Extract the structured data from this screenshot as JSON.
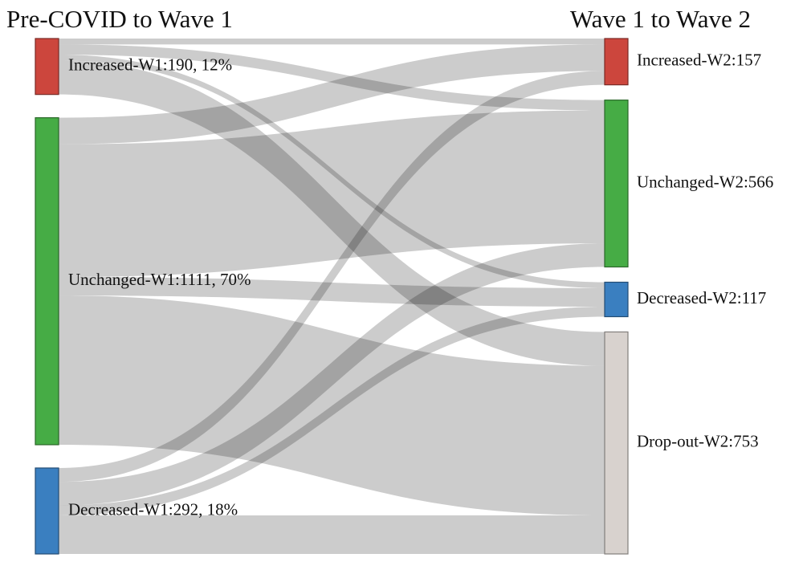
{
  "titles": {
    "left": "Pre-COVID to Wave 1",
    "right": "Wave 1 to Wave 2"
  },
  "chart_data": {
    "type": "sankey",
    "left_nodes": [
      {
        "id": "inc1",
        "label": "Increased-W1:190, 12%",
        "value": 190,
        "color": "#cc463d"
      },
      {
        "id": "unc1",
        "label": "Unchanged-W1:1111, 70%",
        "value": 1111,
        "color": "#46ac45"
      },
      {
        "id": "dec1",
        "label": "Decreased-W1:292, 18%",
        "value": 292,
        "color": "#3a7fc0"
      }
    ],
    "right_nodes": [
      {
        "id": "inc2",
        "label": "Increased-W2:157",
        "value": 157,
        "color": "#cc463d"
      },
      {
        "id": "unc2",
        "label": "Unchanged-W2:566",
        "value": 566,
        "color": "#46ac45"
      },
      {
        "id": "dec2",
        "label": "Decreased-W2:117",
        "value": 117,
        "color": "#3a7fc0"
      },
      {
        "id": "drop2",
        "label": "Drop-out-W2:753",
        "value": 753,
        "color": "#d8d2ce"
      }
    ],
    "links": [
      {
        "source": "inc1",
        "target": "inc2",
        "value": 20
      },
      {
        "source": "inc1",
        "target": "unc2",
        "value": 35
      },
      {
        "source": "inc1",
        "target": "dec2",
        "value": 20
      },
      {
        "source": "inc1",
        "target": "drop2",
        "value": 115
      },
      {
        "source": "unc1",
        "target": "inc2",
        "value": 90
      },
      {
        "source": "unc1",
        "target": "unc2",
        "value": 451
      },
      {
        "source": "unc1",
        "target": "dec2",
        "value": 63
      },
      {
        "source": "unc1",
        "target": "drop2",
        "value": 507
      },
      {
        "source": "dec1",
        "target": "inc2",
        "value": 47
      },
      {
        "source": "dec1",
        "target": "unc2",
        "value": 80
      },
      {
        "source": "dec1",
        "target": "dec2",
        "value": 34
      },
      {
        "source": "dec1",
        "target": "drop2",
        "value": 131
      }
    ]
  }
}
